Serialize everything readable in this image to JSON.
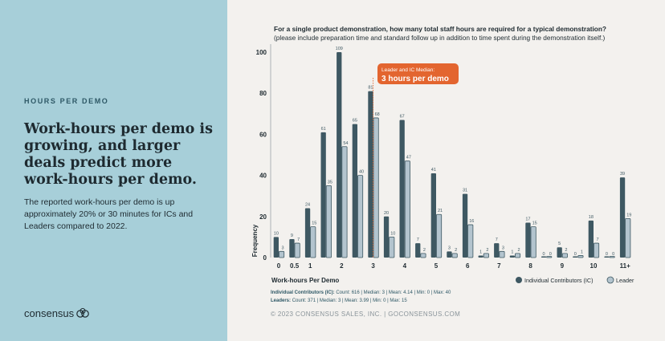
{
  "sidebar": {
    "eyebrow": "HOURS PER DEMO",
    "headline": "Work-hours per demo is growing, and larger deals predict more work-hours per demo.",
    "body": "The reported work-hours per demo is up approximately 20% or 30 minutes for ICs and Leaders compared to 2022.",
    "logo_text": "consensus",
    "logo_icon": "consensus-logo-icon"
  },
  "colors": {
    "ic": "#3e5862",
    "leader": "#b3c4ce",
    "callout": "#e3652f",
    "sidebar": "#a7cfd9"
  },
  "chart_data": {
    "type": "bar",
    "title": "For a single product demonstration, how many total staff hours are required for a typical demonstration?",
    "subtitle": "(please include preparation time and standard follow up in addition to time spent during the demonstration itself.)",
    "xlabel": "Work-hours Per Demo",
    "ylabel": "Frequency",
    "ylim": [
      0,
      100
    ],
    "yticks": [
      0,
      20,
      40,
      60,
      80,
      100
    ],
    "categories": [
      "0",
      "0.5",
      "1",
      "",
      "2",
      "",
      "3",
      "",
      "4",
      "",
      "5",
      "",
      "6",
      "",
      "7",
      "",
      "8",
      "",
      "9",
      "",
      "10",
      "",
      "11+"
    ],
    "series": [
      {
        "name": "Individual Contributors (IC)",
        "values": [
          10,
          9,
          24,
          61,
          109,
          65,
          81,
          20,
          67,
          7,
          41,
          3,
          31,
          1,
          7,
          1,
          17,
          0,
          5,
          0,
          18,
          0,
          39
        ]
      },
      {
        "name": "Leader",
        "values": [
          3,
          7,
          15,
          35,
          54,
          40,
          68,
          10,
          47,
          2,
          21,
          2,
          16,
          2,
          3,
          2,
          15,
          0,
          2,
          1,
          7,
          0,
          19
        ]
      }
    ],
    "annotation": {
      "line1": "Leader and IC Median:",
      "line2": "3 hours per demo"
    },
    "stats": {
      "ic_label": "Individual Contributors (IC):",
      "ic_text": "Count: 616  |  Median: 3  |  Mean: 4.14  |  Min: 0  |  Max: 40",
      "leader_label": "Leaders:",
      "leader_text": "Count: 371  |  Median: 3  |  Mean: 3.99  |  Min: 0  |  Max: 15"
    }
  },
  "footer": {
    "copyright": "© 2023 CONSENSUS SALES, INC.  |  GOCONSENSUS.COM"
  }
}
